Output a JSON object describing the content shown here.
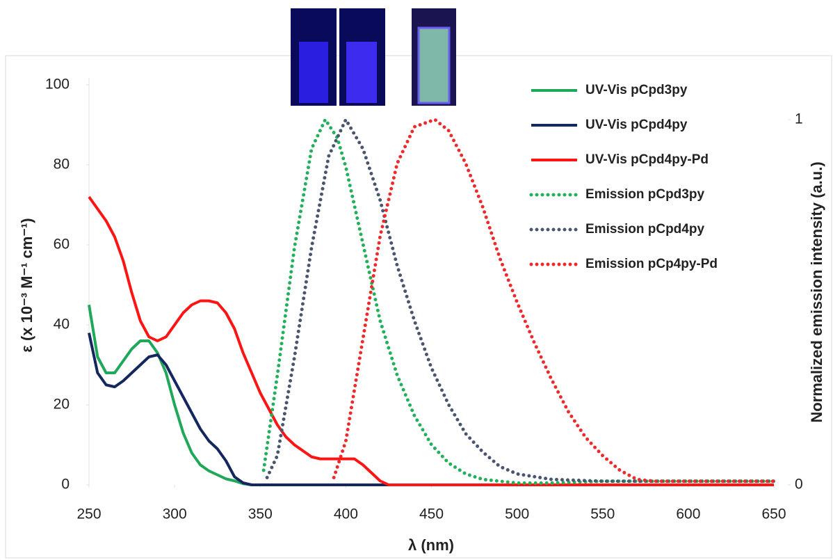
{
  "chart_data": {
    "type": "line",
    "xlabel": "λ (nm)",
    "ylabel": "ε (x 10⁻³ M⁻¹ cm⁻¹)",
    "y2label": "Normalized emission intensity (a.u.)",
    "xlim": [
      250,
      650
    ],
    "xticks": [
      250,
      300,
      350,
      400,
      450,
      500,
      550,
      600,
      650
    ],
    "ylim": [
      0,
      100
    ],
    "yticks": [
      0,
      20,
      40,
      60,
      80,
      100
    ],
    "y2lim": [
      0,
      1.095
    ],
    "y2ticks": [
      0,
      1
    ],
    "legend": "top-right",
    "series": [
      {
        "name": "UV-Vis pCpd3py",
        "color": "#20a85a",
        "linestyle": "solid",
        "x": [
          250,
          255,
          260,
          265,
          270,
          275,
          280,
          285,
          290,
          295,
          300,
          305,
          310,
          315,
          320,
          325,
          330,
          335,
          340,
          345,
          350,
          400,
          650
        ],
        "values": [
          45,
          32,
          28,
          28,
          31,
          34,
          36,
          36,
          33,
          28,
          20,
          13,
          8,
          5,
          3.5,
          2.5,
          1.5,
          1,
          0.3,
          0,
          0,
          0,
          0
        ]
      },
      {
        "name": "UV-Vis pCpd4py",
        "color": "#14275e",
        "linestyle": "solid",
        "x": [
          250,
          255,
          260,
          265,
          270,
          275,
          280,
          285,
          290,
          295,
          300,
          305,
          310,
          315,
          320,
          325,
          330,
          335,
          340,
          345,
          650
        ],
        "values": [
          38,
          28,
          25,
          24.5,
          26,
          28,
          30,
          32,
          32.5,
          30,
          26,
          22,
          18,
          14,
          11,
          9,
          6,
          2,
          0.5,
          0,
          0
        ]
      },
      {
        "name": "UV-Vis pCpd4py-Pd",
        "color": "#ff1414",
        "linestyle": "solid",
        "x": [
          250,
          255,
          260,
          265,
          270,
          275,
          280,
          285,
          290,
          295,
          300,
          305,
          310,
          315,
          320,
          325,
          330,
          335,
          340,
          345,
          350,
          355,
          360,
          365,
          370,
          375,
          380,
          385,
          390,
          395,
          400,
          405,
          410,
          415,
          420,
          425,
          650
        ],
        "values": [
          72,
          69,
          66,
          62,
          56,
          48,
          41,
          37,
          36,
          37,
          40,
          43,
          45,
          46,
          46,
          45.5,
          43,
          39,
          33,
          28,
          23,
          19,
          15,
          12,
          10,
          8.5,
          7,
          6.5,
          6.5,
          6.5,
          6.5,
          6.5,
          5,
          3,
          1,
          0,
          0
        ]
      },
      {
        "name": "Emission pCpd3py",
        "color": "#22b05a",
        "linestyle": "dotted",
        "axis": "y2",
        "x": [
          352,
          360,
          370,
          380,
          388,
          395,
          400,
          410,
          420,
          430,
          440,
          450,
          460,
          470,
          480,
          490,
          500,
          520,
          550,
          600,
          650
        ],
        "values": [
          0.04,
          0.3,
          0.65,
          0.92,
          1.0,
          0.95,
          0.87,
          0.66,
          0.45,
          0.3,
          0.19,
          0.11,
          0.06,
          0.03,
          0.015,
          0.01,
          0.005,
          0.005,
          0.01,
          0.01,
          0.01
        ]
      },
      {
        "name": "Emission pCpd4py",
        "color": "#4a5670",
        "linestyle": "dotted",
        "axis": "y2",
        "x": [
          354,
          360,
          370,
          380,
          390,
          400,
          410,
          420,
          430,
          440,
          450,
          460,
          470,
          480,
          490,
          500,
          520,
          550,
          600,
          650
        ],
        "values": [
          0.02,
          0.08,
          0.35,
          0.65,
          0.9,
          1.0,
          0.92,
          0.78,
          0.6,
          0.45,
          0.32,
          0.22,
          0.14,
          0.09,
          0.05,
          0.03,
          0.015,
          0.01,
          0.01,
          0.01
        ]
      },
      {
        "name": "Emission pCp4py-Pd",
        "color": "#ee2a2a",
        "linestyle": "dotted",
        "axis": "y2",
        "x": [
          393,
          400,
          410,
          420,
          430,
          440,
          452,
          460,
          470,
          480,
          490,
          500,
          510,
          520,
          530,
          540,
          550,
          560,
          570,
          580,
          600,
          650
        ],
        "values": [
          0.02,
          0.12,
          0.4,
          0.68,
          0.88,
          0.98,
          1.0,
          0.97,
          0.88,
          0.76,
          0.62,
          0.5,
          0.39,
          0.29,
          0.2,
          0.13,
          0.08,
          0.04,
          0.015,
          0.01,
          0.01,
          0.01
        ]
      }
    ]
  }
}
